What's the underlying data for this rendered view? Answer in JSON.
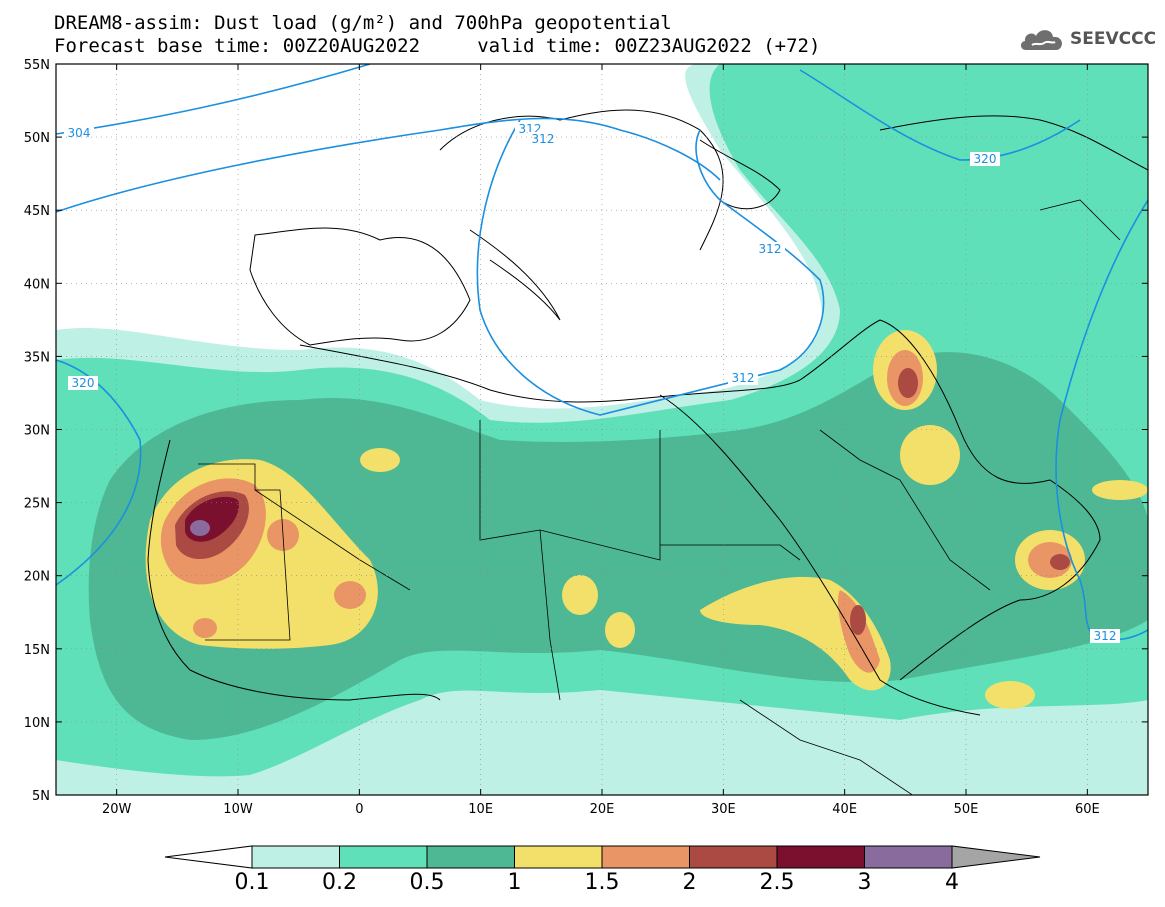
{
  "title": {
    "line1": "DREAM8-assim: Dust load (g/m²) and 700hPa geopotential",
    "line2": "Forecast base time: 00Z20AUG2022     valid time: 00Z23AUG2022 (+72)"
  },
  "logo": {
    "text": "SEEVCCC",
    "icon": "cloud-icon"
  },
  "map": {
    "lon_range": [
      -25,
      65
    ],
    "lat_range": [
      5,
      55
    ],
    "lon_ticks": [
      {
        "value": -20,
        "label": "20W"
      },
      {
        "value": -10,
        "label": "10W"
      },
      {
        "value": 0,
        "label": "0"
      },
      {
        "value": 10,
        "label": "10E"
      },
      {
        "value": 20,
        "label": "20E"
      },
      {
        "value": 30,
        "label": "30E"
      },
      {
        "value": 40,
        "label": "40E"
      },
      {
        "value": 50,
        "label": "50E"
      },
      {
        "value": 60,
        "label": "60E"
      }
    ],
    "lat_ticks": [
      {
        "value": 55,
        "label": "55N"
      },
      {
        "value": 50,
        "label": "50N"
      },
      {
        "value": 45,
        "label": "45N"
      },
      {
        "value": 40,
        "label": "40N"
      },
      {
        "value": 35,
        "label": "35N"
      },
      {
        "value": 30,
        "label": "30N"
      },
      {
        "value": 25,
        "label": "25N"
      },
      {
        "value": 20,
        "label": "20N"
      },
      {
        "value": 15,
        "label": "15N"
      },
      {
        "value": 10,
        "label": "10N"
      },
      {
        "value": 5,
        "label": "5N"
      }
    ],
    "geopotential_labels": [
      "304",
      "312",
      "312",
      "312",
      "312",
      "312",
      "320",
      "320"
    ]
  },
  "colorbar": {
    "labels": [
      "0.1",
      "0.2",
      "0.5",
      "1",
      "1.5",
      "2",
      "2.5",
      "3",
      "4"
    ],
    "colors": [
      "#bff0e6",
      "#5fe0b8",
      "#4db893",
      "#f2e06a",
      "#ea9565",
      "#ab4a43",
      "#7a0f2e",
      "#8a6b9e"
    ],
    "under_color": "#ffffff",
    "over_color": "#a5a5a5"
  },
  "colors": {
    "contour": "#1b8fe0",
    "border": "#000000"
  }
}
